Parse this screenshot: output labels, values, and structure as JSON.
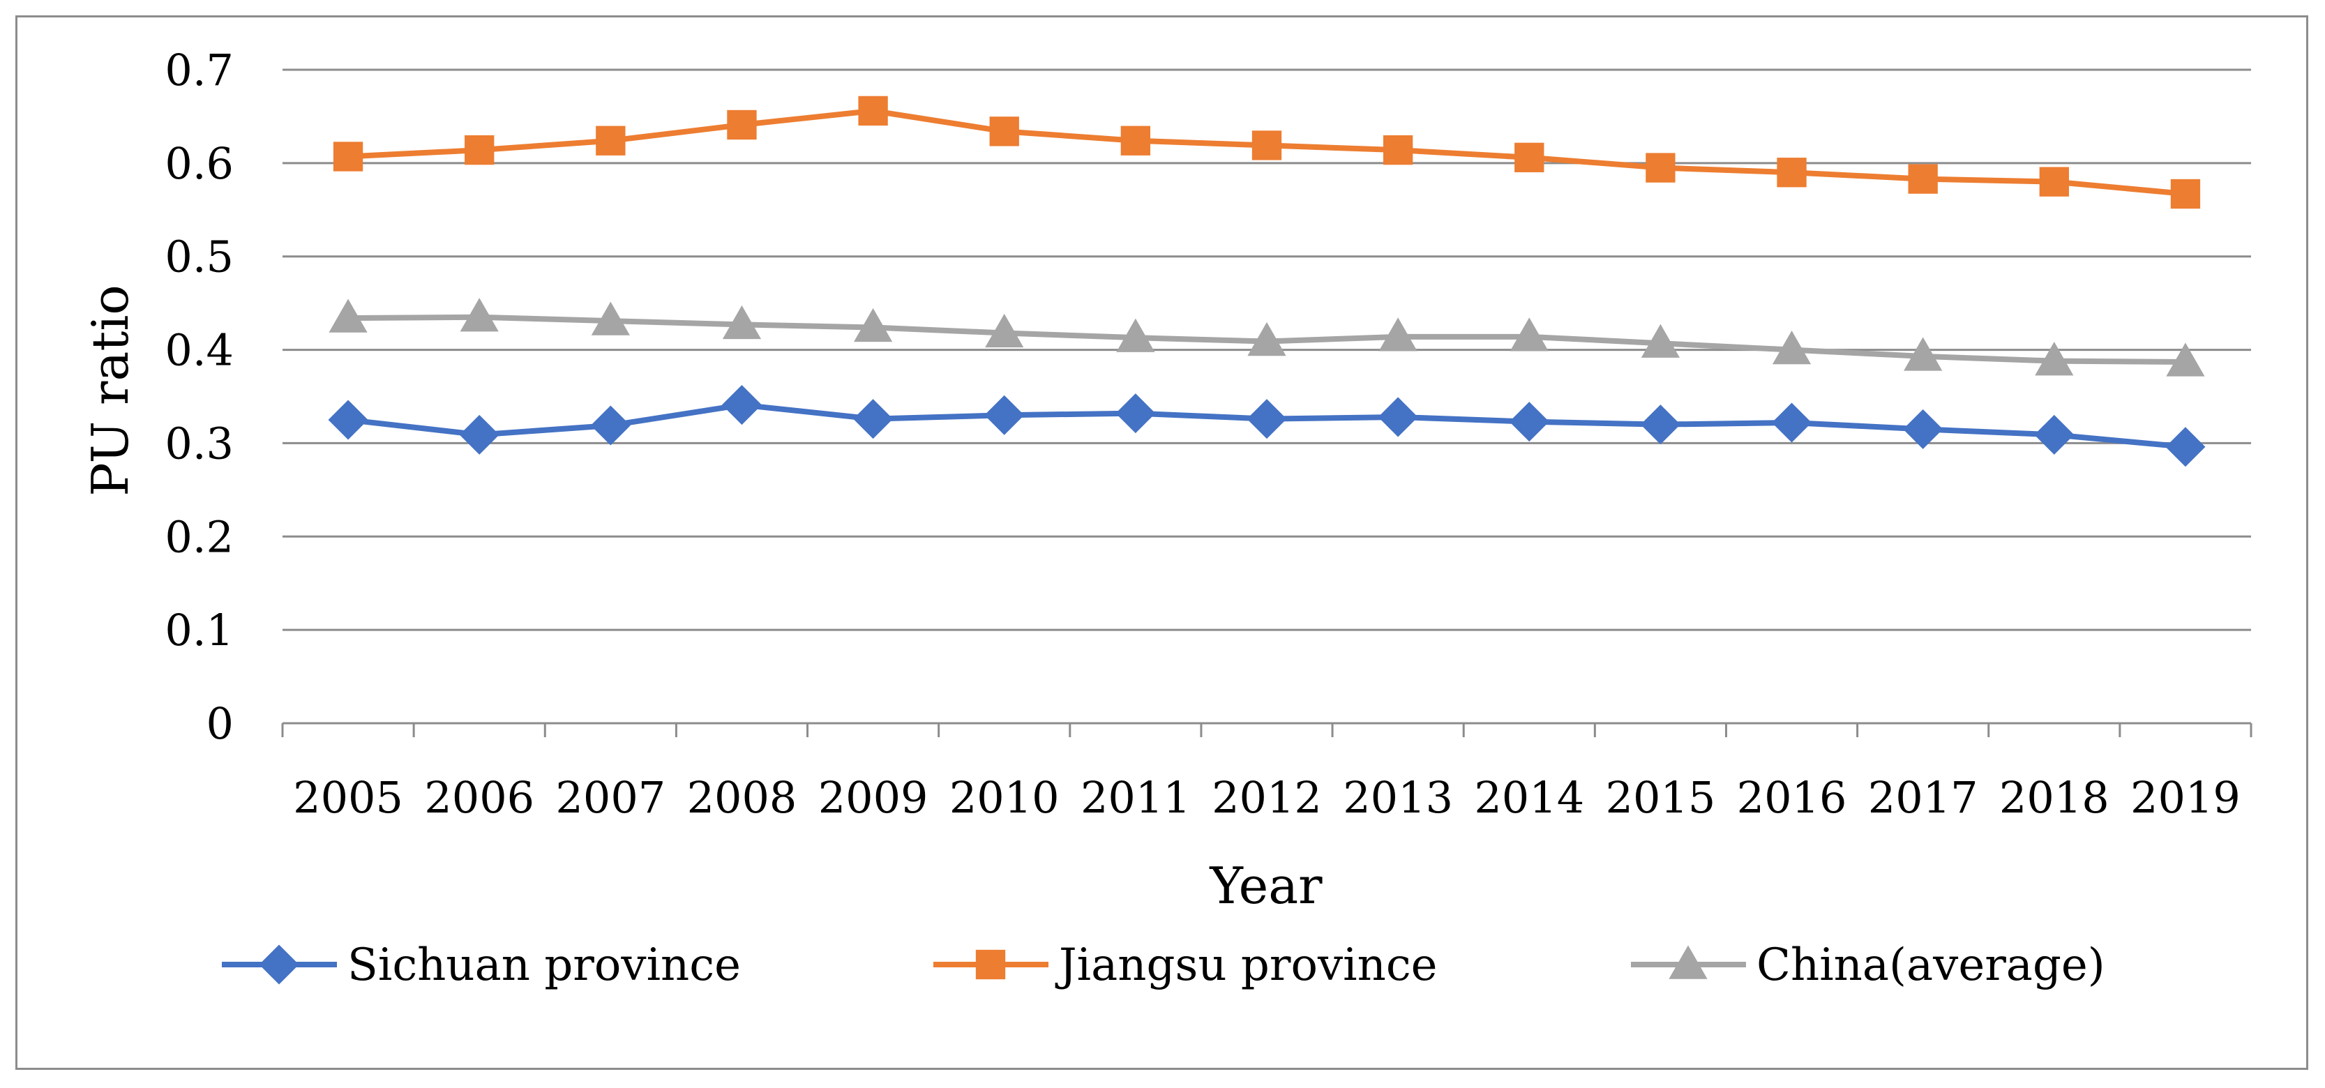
{
  "chart_data": {
    "type": "line",
    "title": "",
    "xlabel": "Year",
    "ylabel": "PU ratio",
    "ylim": [
      0,
      0.7
    ],
    "yticks": [
      "0",
      "0.1",
      "0.2",
      "0.3",
      "0.4",
      "0.5",
      "0.6",
      "0.7"
    ],
    "grid": true,
    "legend_position": "bottom",
    "categories": [
      "2005",
      "2006",
      "2007",
      "2008",
      "2009",
      "2010",
      "2011",
      "2012",
      "2013",
      "2014",
      "2015",
      "2016",
      "2017",
      "2018",
      "2019"
    ],
    "series": [
      {
        "name": "Sichuan province",
        "color": "#4472c4",
        "marker": "diamond",
        "values": [
          0.325,
          0.309,
          0.319,
          0.341,
          0.326,
          0.33,
          0.332,
          0.326,
          0.328,
          0.323,
          0.32,
          0.322,
          0.315,
          0.309,
          0.296
        ]
      },
      {
        "name": "Jiangsu province",
        "color": "#ed7d31",
        "marker": "square",
        "values": [
          0.607,
          0.614,
          0.624,
          0.641,
          0.656,
          0.634,
          0.624,
          0.619,
          0.614,
          0.606,
          0.595,
          0.59,
          0.583,
          0.58,
          0.567
        ]
      },
      {
        "name": "China(average)",
        "color": "#a5a5a5",
        "marker": "triangle",
        "values": [
          0.434,
          0.435,
          0.431,
          0.427,
          0.424,
          0.418,
          0.413,
          0.409,
          0.414,
          0.414,
          0.407,
          0.4,
          0.393,
          0.388,
          0.387
        ]
      }
    ]
  }
}
